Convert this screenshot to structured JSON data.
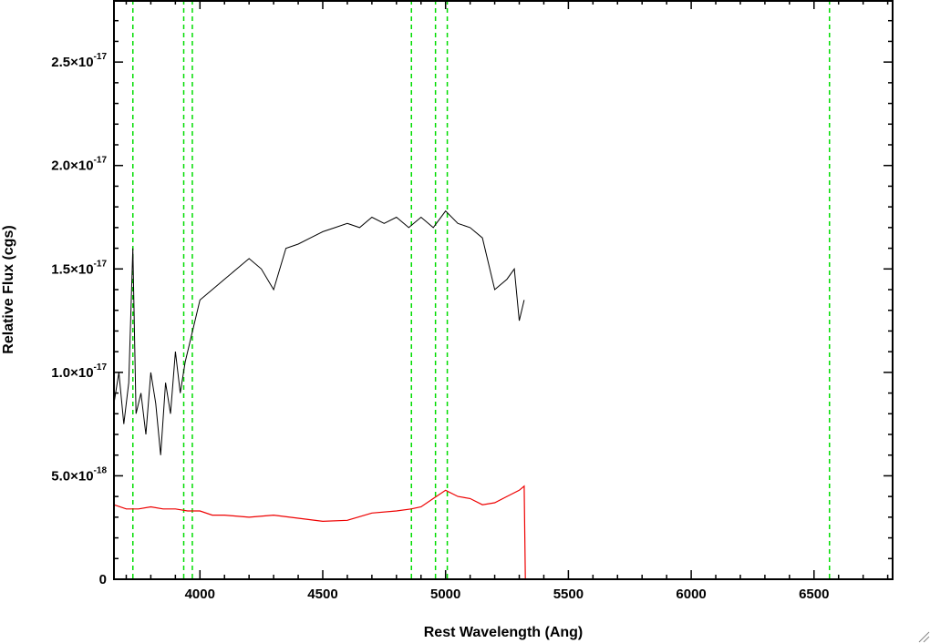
{
  "chart_data": {
    "type": "line",
    "xlabel": "Rest Wavelength (Ang)",
    "ylabel": "Relative Flux (cgs)",
    "xlim": [
      3650,
      6820
    ],
    "ylim": [
      0,
      2.8e-17
    ],
    "x_ticks": [
      {
        "value": 4000,
        "label": "4000"
      },
      {
        "value": 4500,
        "label": "4500"
      },
      {
        "value": 5000,
        "label": "5000"
      },
      {
        "value": 5500,
        "label": "5500"
      },
      {
        "value": 6000,
        "label": "6000"
      },
      {
        "value": 6500,
        "label": "6500"
      }
    ],
    "y_ticks": [
      {
        "value": 0,
        "label": "0",
        "mantissa": "",
        "exponent": ""
      },
      {
        "value": 5e-18,
        "label": "5.0×10⁻¹⁸",
        "mantissa": "5.0×10",
        "exponent": "-18"
      },
      {
        "value": 1e-17,
        "label": "1.0×10⁻¹⁷",
        "mantissa": "1.0×10",
        "exponent": "-17"
      },
      {
        "value": 1.5e-17,
        "label": "1.5×10⁻¹⁷",
        "mantissa": "1.5×10",
        "exponent": "-17"
      },
      {
        "value": 2e-17,
        "label": "2.0×10⁻¹⁷",
        "mantissa": "2.0×10",
        "exponent": "-17"
      },
      {
        "value": 2.5e-17,
        "label": "2.5×10⁻¹⁷",
        "mantissa": "2.5×10",
        "exponent": "-17"
      }
    ],
    "grid": false,
    "vertical_lines": {
      "color": "#00dd00",
      "style": "dashed",
      "x": [
        3727,
        3934,
        3969,
        4861,
        4959,
        5007,
        6563
      ]
    },
    "series": [
      {
        "color": "#000000",
        "x": [
          3650,
          3670,
          3690,
          3710,
          3727,
          3740,
          3760,
          3780,
          3800,
          3820,
          3840,
          3860,
          3880,
          3900,
          3920,
          3940,
          3960,
          3980,
          4000,
          4050,
          4100,
          4150,
          4200,
          4250,
          4300,
          4350,
          4400,
          4450,
          4500,
          4550,
          4600,
          4650,
          4700,
          4750,
          4800,
          4850,
          4900,
          4950,
          5000,
          5050,
          5100,
          5150,
          5200,
          5250,
          5280,
          5300,
          5320
        ],
        "y": [
          8.5e-18,
          1e-17,
          7.5e-18,
          9.5e-18,
          1.6e-17,
          8e-18,
          9e-18,
          7e-18,
          1e-17,
          8.5e-18,
          6e-18,
          9.5e-18,
          8e-18,
          1.1e-17,
          9e-18,
          1.05e-17,
          1.15e-17,
          1.25e-17,
          1.35e-17,
          1.4e-17,
          1.45e-17,
          1.5e-17,
          1.55e-17,
          1.5e-17,
          1.4e-17,
          1.6e-17,
          1.62e-17,
          1.65e-17,
          1.68e-17,
          1.7e-17,
          1.72e-17,
          1.7e-17,
          1.75e-17,
          1.72e-17,
          1.75e-17,
          1.7e-17,
          1.75e-17,
          1.7e-17,
          1.78e-17,
          1.72e-17,
          1.7e-17,
          1.65e-17,
          1.4e-17,
          1.45e-17,
          1.5e-17,
          1.25e-17,
          1.35e-17
        ]
      },
      {
        "color": "#ee0000",
        "x": [
          3650,
          3700,
          3750,
          3800,
          3850,
          3900,
          3950,
          4000,
          4050,
          4100,
          4200,
          4300,
          4400,
          4500,
          4600,
          4700,
          4800,
          4860,
          4900,
          4950,
          5000,
          5050,
          5100,
          5150,
          5200,
          5250,
          5300,
          5320,
          5325,
          5330,
          5500,
          6000,
          6500,
          6820
        ],
        "y": [
          3.6e-18,
          3.4e-18,
          3.4e-18,
          3.5e-18,
          3.4e-18,
          3.4e-18,
          3.3e-18,
          3.3e-18,
          3.1e-18,
          3.1e-18,
          3e-18,
          3.1e-18,
          2.95e-18,
          2.8e-18,
          2.85e-18,
          3.2e-18,
          3.3e-18,
          3.4e-18,
          3.5e-18,
          3.9e-18,
          4.3e-18,
          4e-18,
          3.9e-18,
          3.6e-18,
          3.7e-18,
          4e-18,
          4.3e-18,
          4.5e-18,
          0,
          0,
          0,
          0,
          0,
          0
        ]
      }
    ]
  }
}
